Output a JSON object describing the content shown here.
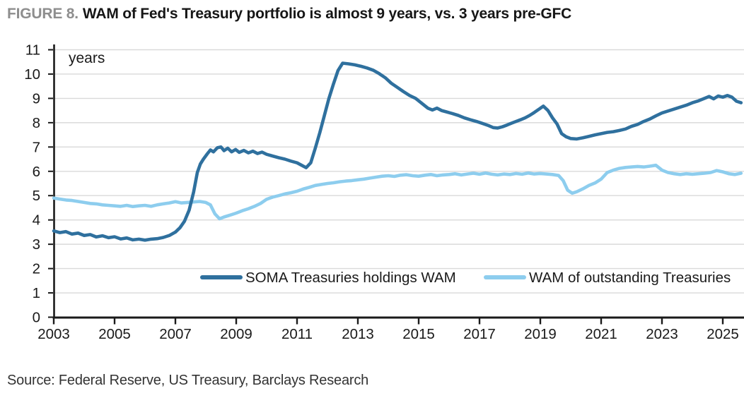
{
  "figure": {
    "label": "FIGURE 8.",
    "title": "WAM of Fed's Treasury portfolio is almost 9 years, vs. 3 years pre-GFC"
  },
  "source": "Source: Federal Reserve, US Treasury, Barclays Research",
  "chart_data": {
    "type": "line",
    "title": "WAM of Fed's Treasury portfolio is almost 9 years, vs. 3 years pre-GFC",
    "unit_label": "years",
    "xlabel": "",
    "ylabel": "years",
    "xlim": [
      2003,
      2025.7
    ],
    "ylim": [
      0,
      11
    ],
    "x_ticks": [
      2003,
      2005,
      2007,
      2009,
      2011,
      2013,
      2015,
      2017,
      2019,
      2021,
      2023,
      2025
    ],
    "y_ticks": [
      0,
      1,
      2,
      3,
      4,
      5,
      6,
      7,
      8,
      9,
      10,
      11
    ],
    "grid": "horizontal",
    "grid_color": "#d9d9d9",
    "axis_color": "#1a1a1a",
    "legend_position": "inside-bottom",
    "series": [
      {
        "name": "SOMA Treasuries holdings WAM",
        "color": "#2f709e",
        "points": [
          [
            2003.0,
            3.55
          ],
          [
            2003.2,
            3.48
          ],
          [
            2003.4,
            3.52
          ],
          [
            2003.6,
            3.42
          ],
          [
            2003.8,
            3.46
          ],
          [
            2004.0,
            3.36
          ],
          [
            2004.2,
            3.4
          ],
          [
            2004.4,
            3.3
          ],
          [
            2004.6,
            3.35
          ],
          [
            2004.8,
            3.27
          ],
          [
            2005.0,
            3.31
          ],
          [
            2005.2,
            3.22
          ],
          [
            2005.4,
            3.26
          ],
          [
            2005.6,
            3.18
          ],
          [
            2005.8,
            3.21
          ],
          [
            2006.0,
            3.17
          ],
          [
            2006.2,
            3.21
          ],
          [
            2006.4,
            3.23
          ],
          [
            2006.6,
            3.28
          ],
          [
            2006.8,
            3.36
          ],
          [
            2007.0,
            3.5
          ],
          [
            2007.15,
            3.68
          ],
          [
            2007.3,
            3.95
          ],
          [
            2007.45,
            4.4
          ],
          [
            2007.6,
            5.15
          ],
          [
            2007.72,
            5.95
          ],
          [
            2007.82,
            6.3
          ],
          [
            2007.92,
            6.5
          ],
          [
            2008.05,
            6.72
          ],
          [
            2008.15,
            6.88
          ],
          [
            2008.25,
            6.8
          ],
          [
            2008.38,
            6.97
          ],
          [
            2008.5,
            7.0
          ],
          [
            2008.6,
            6.85
          ],
          [
            2008.72,
            6.95
          ],
          [
            2008.85,
            6.8
          ],
          [
            2008.98,
            6.9
          ],
          [
            2009.1,
            6.78
          ],
          [
            2009.25,
            6.86
          ],
          [
            2009.4,
            6.76
          ],
          [
            2009.55,
            6.83
          ],
          [
            2009.7,
            6.73
          ],
          [
            2009.85,
            6.79
          ],
          [
            2010.0,
            6.7
          ],
          [
            2010.2,
            6.63
          ],
          [
            2010.4,
            6.56
          ],
          [
            2010.6,
            6.5
          ],
          [
            2010.8,
            6.42
          ],
          [
            2011.0,
            6.35
          ],
          [
            2011.15,
            6.25
          ],
          [
            2011.3,
            6.15
          ],
          [
            2011.45,
            6.35
          ],
          [
            2011.6,
            6.95
          ],
          [
            2011.75,
            7.6
          ],
          [
            2011.9,
            8.3
          ],
          [
            2012.05,
            9.0
          ],
          [
            2012.2,
            9.6
          ],
          [
            2012.35,
            10.15
          ],
          [
            2012.5,
            10.45
          ],
          [
            2012.7,
            10.42
          ],
          [
            2012.9,
            10.38
          ],
          [
            2013.1,
            10.32
          ],
          [
            2013.3,
            10.25
          ],
          [
            2013.5,
            10.16
          ],
          [
            2013.7,
            10.02
          ],
          [
            2013.9,
            9.85
          ],
          [
            2014.1,
            9.62
          ],
          [
            2014.3,
            9.45
          ],
          [
            2014.5,
            9.28
          ],
          [
            2014.7,
            9.12
          ],
          [
            2014.9,
            9.0
          ],
          [
            2015.1,
            8.8
          ],
          [
            2015.3,
            8.6
          ],
          [
            2015.45,
            8.52
          ],
          [
            2015.6,
            8.6
          ],
          [
            2015.75,
            8.5
          ],
          [
            2015.9,
            8.45
          ],
          [
            2016.1,
            8.38
          ],
          [
            2016.3,
            8.3
          ],
          [
            2016.5,
            8.2
          ],
          [
            2016.7,
            8.12
          ],
          [
            2016.9,
            8.05
          ],
          [
            2017.1,
            7.97
          ],
          [
            2017.3,
            7.88
          ],
          [
            2017.45,
            7.8
          ],
          [
            2017.6,
            7.78
          ],
          [
            2017.75,
            7.83
          ],
          [
            2017.9,
            7.9
          ],
          [
            2018.05,
            7.98
          ],
          [
            2018.2,
            8.05
          ],
          [
            2018.35,
            8.12
          ],
          [
            2018.5,
            8.2
          ],
          [
            2018.65,
            8.3
          ],
          [
            2018.8,
            8.42
          ],
          [
            2018.95,
            8.55
          ],
          [
            2019.1,
            8.68
          ],
          [
            2019.25,
            8.5
          ],
          [
            2019.4,
            8.2
          ],
          [
            2019.55,
            7.95
          ],
          [
            2019.7,
            7.55
          ],
          [
            2019.85,
            7.42
          ],
          [
            2020.0,
            7.35
          ],
          [
            2020.2,
            7.33
          ],
          [
            2020.4,
            7.38
          ],
          [
            2020.6,
            7.44
          ],
          [
            2020.8,
            7.5
          ],
          [
            2021.0,
            7.55
          ],
          [
            2021.2,
            7.6
          ],
          [
            2021.4,
            7.63
          ],
          [
            2021.6,
            7.68
          ],
          [
            2021.8,
            7.74
          ],
          [
            2022.0,
            7.85
          ],
          [
            2022.2,
            7.93
          ],
          [
            2022.4,
            8.05
          ],
          [
            2022.6,
            8.15
          ],
          [
            2022.8,
            8.28
          ],
          [
            2023.0,
            8.4
          ],
          [
            2023.2,
            8.48
          ],
          [
            2023.4,
            8.56
          ],
          [
            2023.6,
            8.64
          ],
          [
            2023.8,
            8.72
          ],
          [
            2024.0,
            8.82
          ],
          [
            2024.2,
            8.9
          ],
          [
            2024.4,
            9.0
          ],
          [
            2024.55,
            9.08
          ],
          [
            2024.7,
            8.98
          ],
          [
            2024.85,
            9.1
          ],
          [
            2025.0,
            9.05
          ],
          [
            2025.15,
            9.12
          ],
          [
            2025.3,
            9.05
          ],
          [
            2025.45,
            8.88
          ],
          [
            2025.6,
            8.82
          ]
        ]
      },
      {
        "name": "WAM of outstanding Treasuries",
        "color": "#8dcdee",
        "points": [
          [
            2003.0,
            4.9
          ],
          [
            2003.2,
            4.86
          ],
          [
            2003.4,
            4.82
          ],
          [
            2003.6,
            4.8
          ],
          [
            2003.8,
            4.76
          ],
          [
            2004.0,
            4.72
          ],
          [
            2004.2,
            4.68
          ],
          [
            2004.4,
            4.66
          ],
          [
            2004.6,
            4.62
          ],
          [
            2004.8,
            4.6
          ],
          [
            2005.0,
            4.58
          ],
          [
            2005.2,
            4.56
          ],
          [
            2005.4,
            4.6
          ],
          [
            2005.6,
            4.55
          ],
          [
            2005.8,
            4.58
          ],
          [
            2006.0,
            4.6
          ],
          [
            2006.2,
            4.56
          ],
          [
            2006.4,
            4.62
          ],
          [
            2006.6,
            4.66
          ],
          [
            2006.8,
            4.7
          ],
          [
            2007.0,
            4.75
          ],
          [
            2007.2,
            4.7
          ],
          [
            2007.4,
            4.72
          ],
          [
            2007.6,
            4.74
          ],
          [
            2007.8,
            4.76
          ],
          [
            2008.0,
            4.72
          ],
          [
            2008.15,
            4.62
          ],
          [
            2008.3,
            4.25
          ],
          [
            2008.45,
            4.05
          ],
          [
            2008.6,
            4.12
          ],
          [
            2008.8,
            4.2
          ],
          [
            2009.0,
            4.28
          ],
          [
            2009.2,
            4.38
          ],
          [
            2009.4,
            4.46
          ],
          [
            2009.6,
            4.56
          ],
          [
            2009.8,
            4.68
          ],
          [
            2010.0,
            4.85
          ],
          [
            2010.2,
            4.94
          ],
          [
            2010.4,
            5.0
          ],
          [
            2010.6,
            5.07
          ],
          [
            2010.8,
            5.12
          ],
          [
            2011.0,
            5.18
          ],
          [
            2011.2,
            5.27
          ],
          [
            2011.4,
            5.34
          ],
          [
            2011.6,
            5.42
          ],
          [
            2011.8,
            5.46
          ],
          [
            2012.0,
            5.5
          ],
          [
            2012.2,
            5.53
          ],
          [
            2012.4,
            5.57
          ],
          [
            2012.6,
            5.6
          ],
          [
            2012.8,
            5.62
          ],
          [
            2013.0,
            5.65
          ],
          [
            2013.2,
            5.68
          ],
          [
            2013.4,
            5.72
          ],
          [
            2013.6,
            5.76
          ],
          [
            2013.8,
            5.8
          ],
          [
            2014.0,
            5.82
          ],
          [
            2014.2,
            5.79
          ],
          [
            2014.4,
            5.84
          ],
          [
            2014.6,
            5.86
          ],
          [
            2014.8,
            5.82
          ],
          [
            2015.0,
            5.8
          ],
          [
            2015.2,
            5.84
          ],
          [
            2015.4,
            5.87
          ],
          [
            2015.6,
            5.82
          ],
          [
            2015.8,
            5.85
          ],
          [
            2016.0,
            5.87
          ],
          [
            2016.2,
            5.9
          ],
          [
            2016.4,
            5.85
          ],
          [
            2016.6,
            5.89
          ],
          [
            2016.8,
            5.92
          ],
          [
            2017.0,
            5.88
          ],
          [
            2017.2,
            5.93
          ],
          [
            2017.4,
            5.88
          ],
          [
            2017.6,
            5.85
          ],
          [
            2017.8,
            5.89
          ],
          [
            2018.0,
            5.87
          ],
          [
            2018.2,
            5.91
          ],
          [
            2018.4,
            5.88
          ],
          [
            2018.6,
            5.93
          ],
          [
            2018.8,
            5.89
          ],
          [
            2019.0,
            5.91
          ],
          [
            2019.2,
            5.89
          ],
          [
            2019.4,
            5.87
          ],
          [
            2019.6,
            5.83
          ],
          [
            2019.75,
            5.62
          ],
          [
            2019.9,
            5.22
          ],
          [
            2020.05,
            5.1
          ],
          [
            2020.2,
            5.16
          ],
          [
            2020.4,
            5.28
          ],
          [
            2020.6,
            5.42
          ],
          [
            2020.8,
            5.52
          ],
          [
            2021.0,
            5.68
          ],
          [
            2021.2,
            5.95
          ],
          [
            2021.4,
            6.05
          ],
          [
            2021.6,
            6.12
          ],
          [
            2021.8,
            6.16
          ],
          [
            2022.0,
            6.18
          ],
          [
            2022.2,
            6.2
          ],
          [
            2022.4,
            6.18
          ],
          [
            2022.6,
            6.21
          ],
          [
            2022.8,
            6.25
          ],
          [
            2023.0,
            6.05
          ],
          [
            2023.2,
            5.95
          ],
          [
            2023.4,
            5.9
          ],
          [
            2023.6,
            5.87
          ],
          [
            2023.8,
            5.9
          ],
          [
            2024.0,
            5.88
          ],
          [
            2024.2,
            5.9
          ],
          [
            2024.4,
            5.92
          ],
          [
            2024.6,
            5.95
          ],
          [
            2024.8,
            6.03
          ],
          [
            2025.0,
            5.98
          ],
          [
            2025.2,
            5.9
          ],
          [
            2025.4,
            5.87
          ],
          [
            2025.6,
            5.92
          ]
        ]
      }
    ]
  }
}
